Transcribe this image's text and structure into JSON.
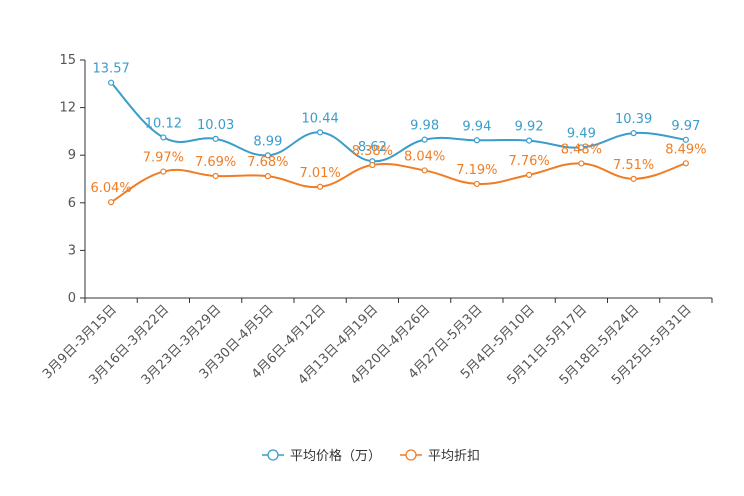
{
  "chart_data": {
    "type": "line",
    "categories": [
      "3月9日-3月15日",
      "3月16日-3月22日",
      "3月23日-3月29日",
      "3月30日-4月5日",
      "4月6日-4月12日",
      "4月13日-4月19日",
      "4月20日-4月26日",
      "4月27日-5月3日",
      "5月4日-5月10日",
      "5月11日-5月17日",
      "5月18日-5月24日",
      "5月25日-5月31日"
    ],
    "ylim": [
      0,
      15
    ],
    "yticks": [
      0,
      3,
      6,
      9,
      12,
      15
    ],
    "series": [
      {
        "name": "平均价格（万）",
        "color": "#3a9dcb",
        "values": [
          13.57,
          10.12,
          10.03,
          8.99,
          10.44,
          8.62,
          9.98,
          9.94,
          9.92,
          9.49,
          10.39,
          9.97
        ],
        "labels": [
          "13.57",
          "10.12",
          "10.03",
          "8.99",
          "10.44",
          "8.62",
          "9.98",
          "9.94",
          "9.92",
          "9.49",
          "10.39",
          "9.97"
        ]
      },
      {
        "name": "平均折扣",
        "color": "#f07d24",
        "values": [
          6.04,
          7.97,
          7.69,
          7.68,
          7.01,
          8.38,
          8.04,
          7.19,
          7.76,
          8.48,
          7.51,
          8.49
        ],
        "labels": [
          "6.04%",
          "7.97%",
          "7.69%",
          "7.68%",
          "7.01%",
          "8.38%",
          "8.04%",
          "7.19%",
          "7.76%",
          "8.48%",
          "7.51%",
          "8.49%"
        ]
      }
    ],
    "legend": [
      "平均价格（万）",
      "平均折扣"
    ],
    "legend_position": "bottom-center"
  }
}
